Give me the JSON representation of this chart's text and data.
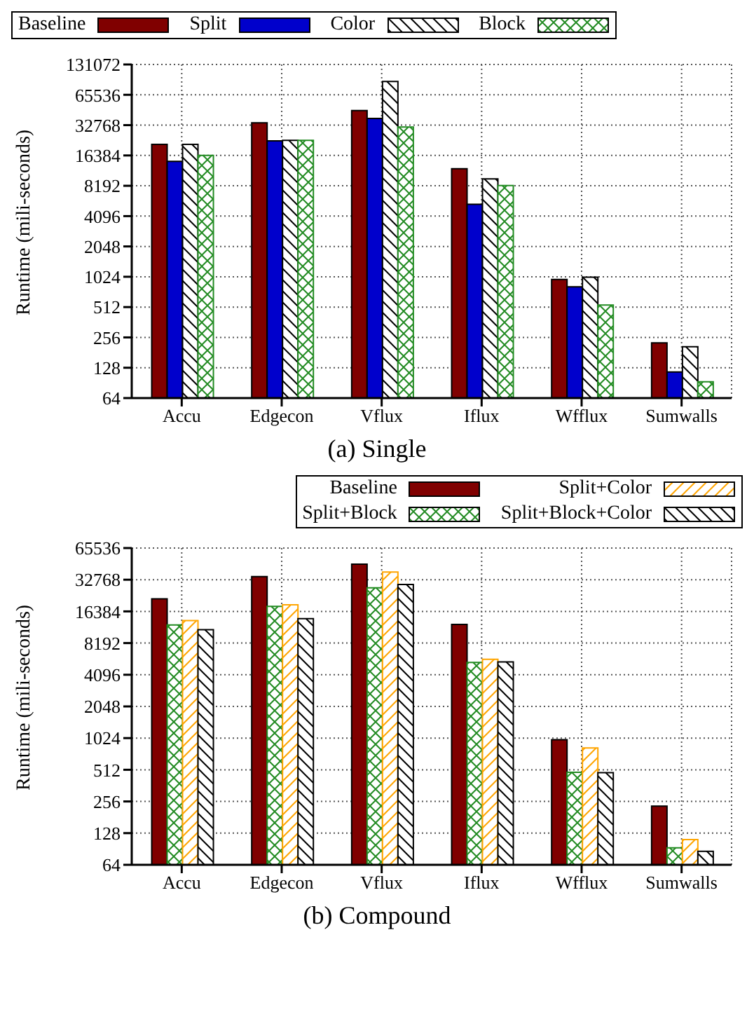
{
  "chart_data": [
    {
      "type": "bar",
      "title": "(a) Single",
      "ylabel": "Runtime (mili-seconds)",
      "categories": [
        "Accu",
        "Edgecon",
        "Vflux",
        "Iflux",
        "Wfflux",
        "Sumwalls"
      ],
      "log": "y",
      "grid": true,
      "legend": "top",
      "ylim": [
        64,
        131072
      ],
      "yticks": [
        64,
        128,
        256,
        512,
        1024,
        2048,
        4096,
        8192,
        16384,
        32768,
        65536,
        131072
      ],
      "series": [
        {
          "name": "Baseline",
          "color": "#800000",
          "values": [
            21100,
            34600,
            45700,
            12100,
            962,
            226
          ]
        },
        {
          "name": "Split",
          "color": "#0000cc",
          "values": [
            14300,
            22900,
            38200,
            5370,
            815,
            116
          ]
        },
        {
          "name": "Color",
          "color": "#000000",
          "values": [
            21100,
            23100,
            88900,
            9600,
            1015,
            207
          ]
        },
        {
          "name": "Block",
          "color": "#228b22",
          "values": [
            16384,
            23100,
            31400,
            8250,
            537,
            93
          ]
        }
      ]
    },
    {
      "type": "bar",
      "title": "(b) Compound",
      "ylabel": "Runtime (mili-seconds)",
      "categories": [
        "Accu",
        "Edgecon",
        "Vflux",
        "Iflux",
        "Wfflux",
        "Sumwalls"
      ],
      "log": "y",
      "grid": true,
      "legend": "top",
      "ylim": [
        64,
        65536
      ],
      "yticks": [
        64,
        128,
        256,
        512,
        1024,
        2048,
        4096,
        8192,
        16384,
        32768,
        65536
      ],
      "series": [
        {
          "name": "Baseline",
          "color": "#800000",
          "values": [
            21600,
            35100,
            46000,
            12300,
            990,
            231
          ]
        },
        {
          "name": "Split+Block",
          "color": "#228b22",
          "values": [
            12200,
            18300,
            27400,
            5370,
            485,
            93
          ]
        },
        {
          "name": "Split+Color",
          "color": "#ffa500",
          "values": [
            13400,
            18900,
            38700,
            5740,
            824,
            111
          ]
        },
        {
          "name": "Split+Block+Color",
          "color": "#000000",
          "values": [
            11000,
            14000,
            29500,
            5430,
            481,
            86
          ]
        }
      ]
    }
  ]
}
